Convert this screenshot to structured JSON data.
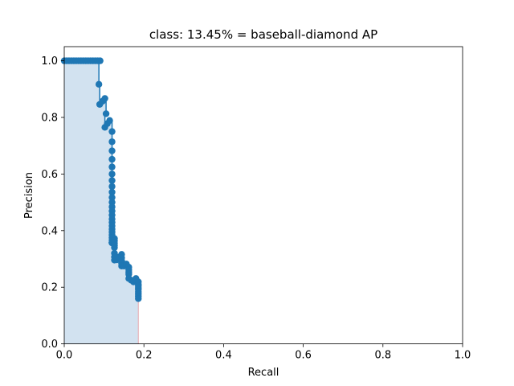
{
  "chart_data": {
    "type": "line",
    "title": "class: 13.45% = baseball-diamond AP",
    "xlabel": "Recall",
    "ylabel": "Precision",
    "xlim": [
      0.0,
      1.0
    ],
    "ylim": [
      0.0,
      1.05
    ],
    "x_ticks": [
      "0.0",
      "0.2",
      "0.4",
      "0.6",
      "0.8",
      "1.0"
    ],
    "y_ticks": [
      "0.0",
      "0.2",
      "0.4",
      "0.6",
      "0.8",
      "1.0"
    ],
    "grid": false,
    "colors": {
      "line": "#1f77b4",
      "fill": "#d2e2f0",
      "edge": "#e6b3bb"
    },
    "series": [
      {
        "recall": [
          0.0,
          0.006,
          0.012,
          0.018,
          0.024,
          0.03,
          0.036,
          0.042,
          0.048,
          0.054,
          0.06,
          0.066,
          0.072,
          0.078,
          0.084,
          0.09,
          0.087,
          0.089,
          0.096,
          0.102,
          0.105,
          0.102,
          0.108,
          0.114,
          0.12,
          0.12,
          0.12,
          0.12,
          0.12,
          0.12,
          0.12,
          0.12,
          0.12,
          0.12,
          0.12,
          0.12,
          0.12,
          0.12,
          0.12,
          0.12,
          0.12,
          0.12,
          0.12,
          0.12,
          0.12,
          0.12,
          0.12,
          0.12,
          0.12,
          0.12,
          0.12,
          0.126,
          0.126,
          0.126,
          0.126,
          0.126,
          0.126,
          0.126,
          0.126,
          0.132,
          0.138,
          0.144,
          0.144,
          0.144,
          0.144,
          0.144,
          0.15,
          0.156,
          0.162,
          0.162,
          0.162,
          0.162,
          0.162,
          0.168,
          0.174,
          0.18,
          0.18,
          0.186,
          0.186,
          0.186,
          0.186,
          0.186,
          0.186,
          0.186,
          0.186,
          0.186
        ],
        "precision": [
          1.0,
          1.0,
          1.0,
          1.0,
          1.0,
          1.0,
          1.0,
          1.0,
          1.0,
          1.0,
          1.0,
          1.0,
          1.0,
          1.0,
          1.0,
          1.0,
          0.917,
          0.846,
          0.857,
          0.867,
          0.813,
          0.765,
          0.778,
          0.789,
          0.75,
          0.714,
          0.682,
          0.652,
          0.625,
          0.6,
          0.577,
          0.556,
          0.536,
          0.517,
          0.5,
          0.484,
          0.469,
          0.455,
          0.441,
          0.429,
          0.417,
          0.405,
          0.395,
          0.385,
          0.375,
          0.366,
          0.357,
          0.357,
          0.357,
          0.357,
          0.357,
          0.372,
          0.364,
          0.356,
          0.348,
          0.34,
          0.32,
          0.307,
          0.296,
          0.297,
          0.307,
          0.316,
          0.304,
          0.294,
          0.284,
          0.275,
          0.275,
          0.282,
          0.271,
          0.262,
          0.254,
          0.246,
          0.231,
          0.225,
          0.219,
          0.231,
          0.225,
          0.219,
          0.211,
          0.205,
          0.198,
          0.192,
          0.184,
          0.176,
          0.168,
          0.16
        ]
      }
    ]
  }
}
